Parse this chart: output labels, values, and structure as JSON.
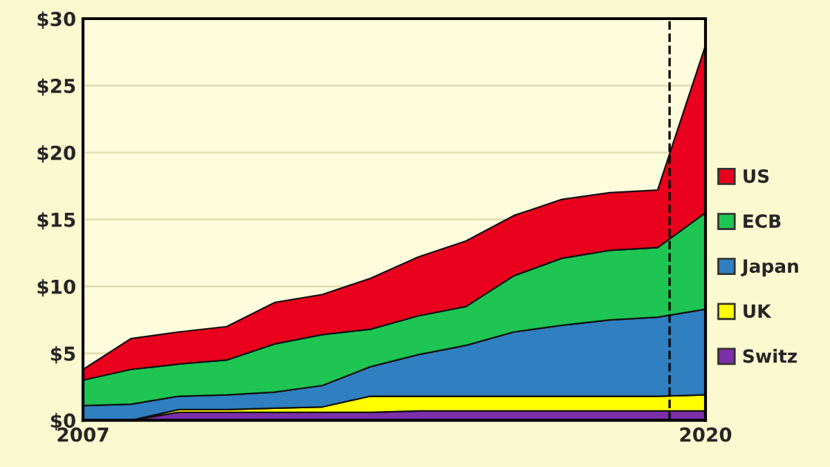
{
  "chart_data": {
    "type": "area",
    "stacked": true,
    "x": [
      2007,
      2008,
      2009,
      2010,
      2011,
      2012,
      2013,
      2014,
      2015,
      2016,
      2017,
      2018,
      2019,
      2020
    ],
    "series": [
      {
        "name": "Switz",
        "color": "#7b2fa8",
        "values": [
          0,
          0,
          0.6,
          0.6,
          0.6,
          0.6,
          0.6,
          0.7,
          0.7,
          0.7,
          0.7,
          0.7,
          0.7,
          0.7
        ]
      },
      {
        "name": "UK",
        "color": "#ffff00",
        "values": [
          0,
          0,
          0.2,
          0.2,
          0.3,
          0.4,
          1.2,
          1.1,
          1.1,
          1.1,
          1.1,
          1.1,
          1.1,
          1.2
        ]
      },
      {
        "name": "Japan",
        "color": "#2f7fc1",
        "values": [
          1.1,
          1.2,
          1.0,
          1.1,
          1.2,
          1.6,
          2.2,
          3.1,
          3.8,
          4.8,
          5.3,
          5.7,
          5.9,
          6.4
        ]
      },
      {
        "name": "ECB",
        "color": "#1ec552",
        "values": [
          1.9,
          2.6,
          2.4,
          2.6,
          3.6,
          3.8,
          2.8,
          2.9,
          2.9,
          4.2,
          5.0,
          5.2,
          5.2,
          7.2
        ]
      },
      {
        "name": "US",
        "color": "#e8001c",
        "values": [
          0.8,
          2.3,
          2.4,
          2.5,
          3.1,
          3.0,
          3.8,
          4.4,
          4.9,
          4.5,
          4.4,
          4.3,
          4.3,
          12.5
        ]
      }
    ],
    "xlim": [
      2007,
      2020
    ],
    "xticks": [
      2007,
      2020
    ],
    "ylim": [
      0,
      30
    ],
    "yticks": [
      {
        "value": 0,
        "label": "$0"
      },
      {
        "value": 5,
        "label": "$5"
      },
      {
        "value": 10,
        "label": "$10"
      },
      {
        "value": 15,
        "label": "$15"
      },
      {
        "value": 20,
        "label": "$20"
      },
      {
        "value": 25,
        "label": "$25"
      },
      {
        "value": 30,
        "label": "$30"
      }
    ],
    "ref_lines": [
      {
        "axis": "x",
        "value": 2019.25,
        "color": "#000000",
        "line_style": "dashed"
      }
    ],
    "grid": "y",
    "legend": "right"
  }
}
